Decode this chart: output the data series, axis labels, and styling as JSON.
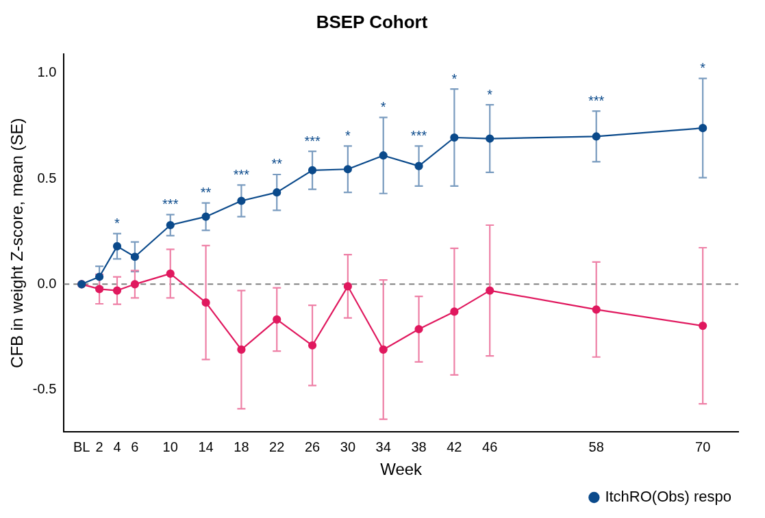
{
  "chart_data": {
    "type": "line",
    "title": "BSEP Cohort",
    "xlabel": "Week",
    "ylabel": "CFB in weight Z-score, mean (SE)",
    "xlim": [
      -2,
      74
    ],
    "xticks": [
      {
        "value": 0,
        "label": "BL"
      },
      2,
      4,
      6,
      10,
      14,
      18,
      22,
      26,
      30,
      34,
      38,
      42,
      46,
      58,
      70
    ],
    "ylim": [
      -0.7,
      1.09
    ],
    "yticks": [
      {
        "value": -0.5,
        "label": "-0.5"
      },
      {
        "value": 0,
        "label": "0.0"
      },
      {
        "value": 0.5,
        "label": "0.5"
      },
      {
        "value": 1,
        "label": "1.0"
      }
    ],
    "x": [
      0,
      2,
      4,
      6,
      10,
      14,
      18,
      22,
      26,
      30,
      34,
      38,
      42,
      46,
      58,
      70
    ],
    "series": [
      {
        "name": "ItchRO(Obs) respo",
        "color": "#0b4a8b",
        "values": [
          0,
          0.035,
          0.18,
          0.13,
          0.28,
          0.32,
          0.395,
          0.435,
          0.54,
          0.545,
          0.61,
          0.56,
          0.695,
          0.69,
          0.7,
          0.74
        ],
        "errors": [
          null,
          0.05,
          0.06,
          0.07,
          0.05,
          0.065,
          0.075,
          0.085,
          0.09,
          0.11,
          0.18,
          0.095,
          0.23,
          0.16,
          0.12,
          0.235
        ]
      },
      {
        "color": "#e0185e",
        "values": [
          0,
          -0.023,
          -0.03,
          0,
          0.05,
          -0.087,
          -0.31,
          -0.167,
          -0.29,
          -0.01,
          -0.31,
          -0.213,
          -0.13,
          -0.03,
          -0.12,
          -0.197
        ],
        "errors": [
          null,
          0.07,
          0.065,
          0.065,
          0.115,
          0.27,
          0.28,
          0.15,
          0.19,
          0.15,
          0.33,
          0.155,
          0.3,
          0.31,
          0.225,
          0.37
        ]
      }
    ],
    "ref_lines": [
      {
        "axis": "y",
        "value": 0,
        "color": "#808080",
        "line_style": "dashed"
      }
    ],
    "annotations": [
      {
        "text": "*",
        "x": 4,
        "y": 0.24
      },
      {
        "text": "***",
        "x": 10,
        "y": 0.33
      },
      {
        "text": "**",
        "x": 14,
        "y": 0.385
      },
      {
        "text": "***",
        "x": 18,
        "y": 0.47
      },
      {
        "text": "**",
        "x": 22,
        "y": 0.52
      },
      {
        "text": "***",
        "x": 26,
        "y": 0.63
      },
      {
        "text": "*",
        "x": 30,
        "y": 0.655
      },
      {
        "text": "*",
        "x": 34,
        "y": 0.79
      },
      {
        "text": "***",
        "x": 38,
        "y": 0.655
      },
      {
        "text": "*",
        "x": 42,
        "y": 0.925
      },
      {
        "text": "*",
        "x": 46,
        "y": 0.85
      },
      {
        "text": "***",
        "x": 58,
        "y": 0.82
      },
      {
        "text": "*",
        "x": 70,
        "y": 0.975
      }
    ],
    "grid": false,
    "legend": "bottom right",
    "marker": "circle",
    "line_style": "solid"
  }
}
